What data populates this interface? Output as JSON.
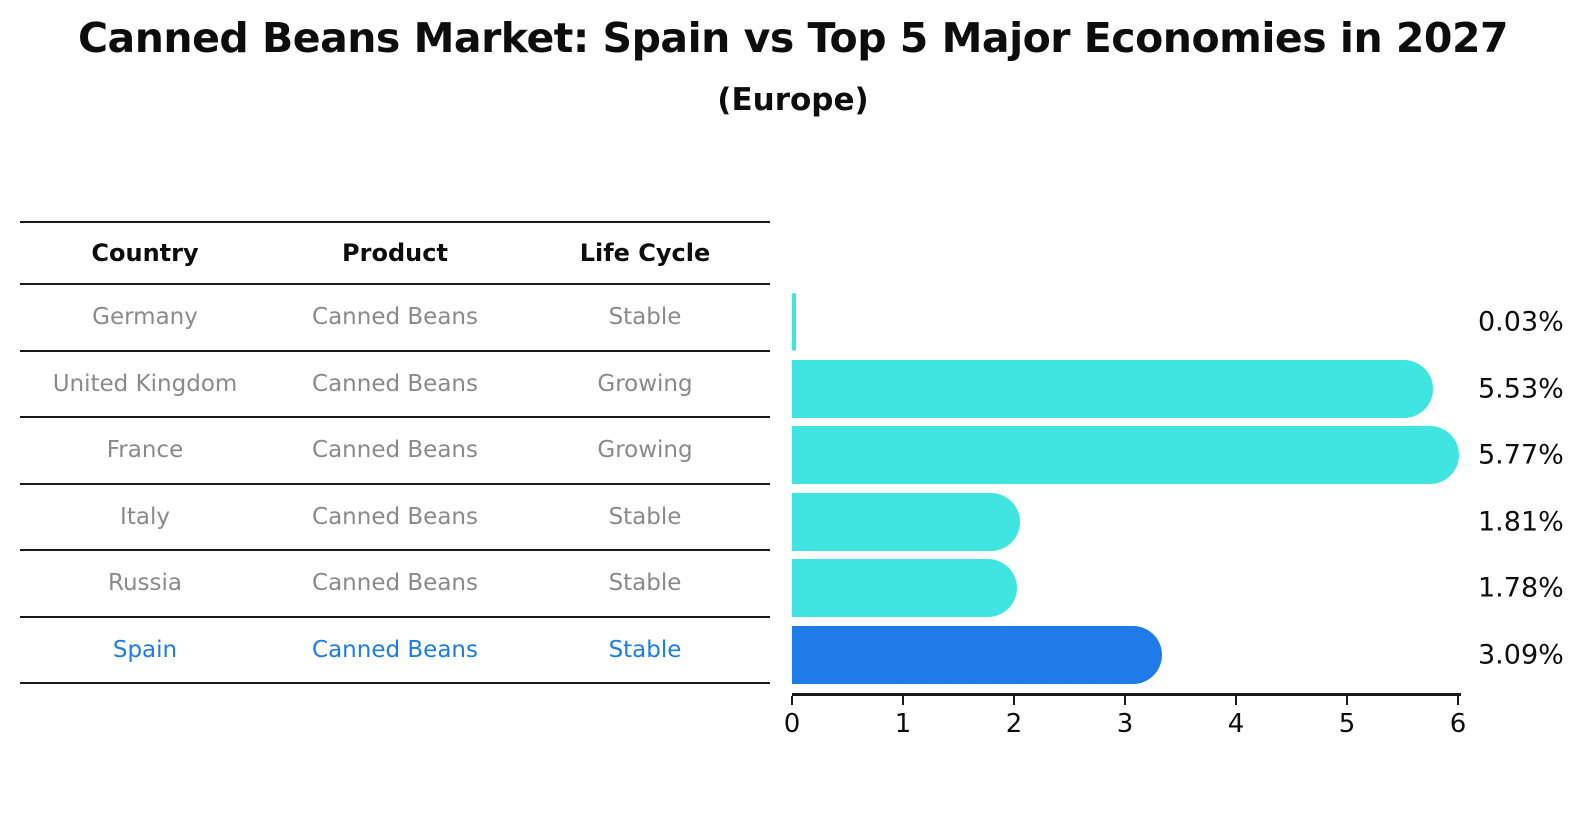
{
  "title": "Canned Beans Market: Spain vs Top 5 Major Economies in 2027",
  "subtitle": "(Europe)",
  "table": {
    "headers": [
      "Country",
      "Product",
      "Life Cycle"
    ],
    "rows": [
      {
        "country": "Germany",
        "product": "Canned Beans",
        "life_cycle": "Stable",
        "highlight": false
      },
      {
        "country": "United Kingdom",
        "product": "Canned Beans",
        "life_cycle": "Growing",
        "highlight": false
      },
      {
        "country": "France",
        "product": "Canned Beans",
        "life_cycle": "Growing",
        "highlight": false
      },
      {
        "country": "Italy",
        "product": "Canned Beans",
        "life_cycle": "Stable",
        "highlight": false
      },
      {
        "country": "Russia",
        "product": "Canned Beans",
        "life_cycle": "Stable",
        "highlight": false
      },
      {
        "country": "Spain",
        "product": "Canned Beans",
        "life_cycle": "Stable",
        "highlight": true
      }
    ]
  },
  "chart_data": {
    "type": "bar",
    "orientation": "horizontal",
    "title": "Canned Beans Market: Spain vs Top 5 Major Economies in 2027",
    "subtitle": "(Europe)",
    "categories": [
      "Germany",
      "United Kingdom",
      "France",
      "Italy",
      "Russia",
      "Spain"
    ],
    "values": [
      0.03,
      5.53,
      5.77,
      1.81,
      1.78,
      3.09
    ],
    "labels": [
      "0.03%",
      "5.53%",
      "5.77%",
      "1.81%",
      "1.78%",
      "3.09%"
    ],
    "highlight_index": 5,
    "bar_color": "#40E4E0",
    "highlight_color": "#1E7BE8",
    "xlabel": "",
    "ylabel": "",
    "xlim": [
      0,
      6
    ],
    "x_ticks": [
      "0",
      "1",
      "2",
      "3",
      "4",
      "5",
      "6"
    ],
    "grid": false,
    "legend": false
  },
  "colors": {
    "bar": "#40E4E0",
    "highlight": "#1E7BE8",
    "table_text": "#8a8a8a",
    "heading_text": "#0d0d0d",
    "line": "#1a1a1a"
  }
}
